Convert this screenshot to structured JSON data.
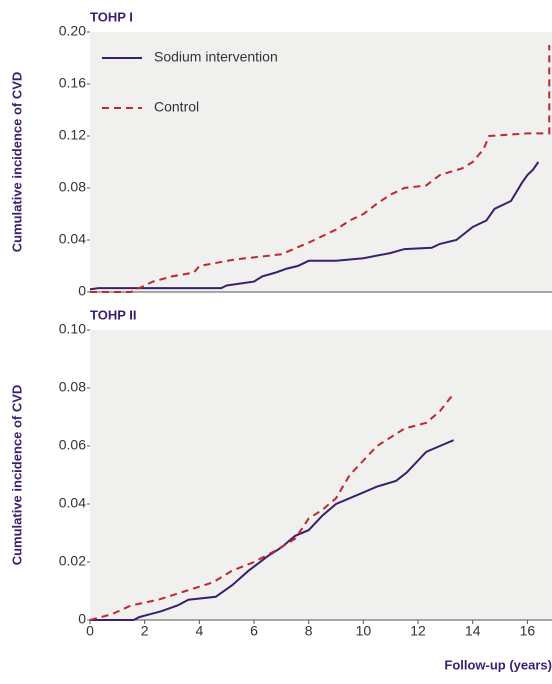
{
  "chart_data": [
    {
      "type": "line",
      "title": "TOHP I",
      "ylabel": "Cumulative incidence of CVD",
      "xlim": [
        0,
        16.9
      ],
      "ylim": [
        0,
        0.2
      ],
      "yticks": [
        0,
        0.04,
        0.08,
        0.12,
        0.16,
        {
          "value": 0.2,
          "label": "0.20"
        }
      ],
      "legend": "top-left",
      "series": [
        {
          "name": "Sodium intervention",
          "color": "#3b1f6e",
          "dashed": false,
          "x": [
            0,
            0.3,
            4.8,
            5,
            6,
            6.3,
            6.8,
            7.2,
            7.6,
            8,
            9,
            10,
            11,
            11.5,
            12.5,
            12.8,
            13.4,
            13.7,
            14,
            14.2,
            14.5,
            14.8,
            15.4,
            15.8,
            16,
            16.2,
            16.4
          ],
          "values": [
            0.002,
            0.003,
            0.003,
            0.005,
            0.008,
            0.012,
            0.015,
            0.018,
            0.02,
            0.024,
            0.024,
            0.026,
            0.03,
            0.033,
            0.034,
            0.037,
            0.04,
            0.045,
            0.05,
            0.052,
            0.055,
            0.064,
            0.07,
            0.084,
            0.09,
            0.094,
            0.1
          ]
        },
        {
          "name": "Control",
          "color": "#c0282d",
          "dashed": true,
          "x": [
            0,
            1.5,
            1.8,
            2.3,
            3,
            3.8,
            4,
            5.3,
            7,
            8,
            9,
            9.5,
            10,
            10.5,
            11,
            11.5,
            12.3,
            12.8,
            13.6,
            14,
            14.4,
            14.6,
            16,
            16.8,
            16.8
          ],
          "values": [
            0,
            0,
            0.003,
            0.008,
            0.012,
            0.015,
            0.02,
            0.025,
            0.029,
            0.038,
            0.048,
            0.055,
            0.06,
            0.068,
            0.075,
            0.08,
            0.082,
            0.09,
            0.095,
            0.1,
            0.11,
            0.12,
            0.122,
            0.122,
            0.19
          ]
        }
      ]
    },
    {
      "type": "line",
      "title": "TOHP II",
      "ylabel": "Cumulative incidence of CVD",
      "xlabel": "Follow-up (years)",
      "xlim": [
        0,
        16.9
      ],
      "ylim": [
        0,
        0.1
      ],
      "xticks": [
        0,
        2,
        4,
        6,
        8,
        10,
        12,
        14,
        16
      ],
      "yticks": [
        0,
        0.02,
        0.04,
        0.06,
        0.08,
        {
          "value": 0.1,
          "label": "0.10"
        }
      ],
      "series": [
        {
          "color": "#3b1f6e",
          "dashed": false,
          "x": [
            0,
            1.6,
            1.8,
            2.2,
            2.6,
            3.2,
            3.6,
            4.6,
            5.2,
            5.8,
            6.5,
            7,
            7.5,
            8,
            8.5,
            9,
            9.5,
            10,
            10.5,
            11.2,
            11.6,
            12,
            12.3,
            12.8,
            13.3
          ],
          "values": [
            0,
            0,
            0.001,
            0.002,
            0.003,
            0.005,
            0.007,
            0.008,
            0.012,
            0.017,
            0.022,
            0.025,
            0.029,
            0.031,
            0.036,
            0.04,
            0.042,
            0.044,
            0.046,
            0.048,
            0.051,
            0.055,
            0.058,
            0.06,
            0.062
          ]
        },
        {
          "color": "#c0282d",
          "dashed": true,
          "x": [
            0,
            0.8,
            1.5,
            2.5,
            3.5,
            4.5,
            5.2,
            6,
            6.8,
            7.5,
            8,
            8.5,
            9,
            9.5,
            10,
            10.5,
            11,
            11.5,
            12.3,
            12.8,
            13.3
          ],
          "values": [
            0,
            0.002,
            0.005,
            0.007,
            0.01,
            0.013,
            0.017,
            0.02,
            0.024,
            0.028,
            0.035,
            0.038,
            0.042,
            0.05,
            0.055,
            0.06,
            0.063,
            0.066,
            0.068,
            0.072,
            0.078
          ]
        }
      ]
    }
  ]
}
